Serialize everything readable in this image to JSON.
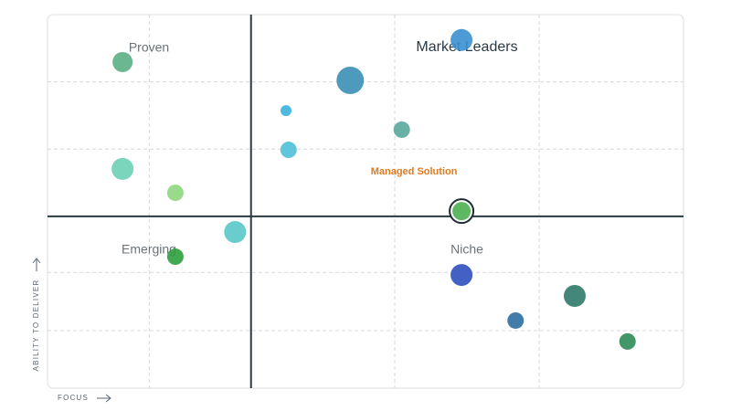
{
  "chart_data": {
    "type": "scatter",
    "quadrant_labels": [
      "Proven",
      "Market Leaders",
      "Emerging",
      "Niche"
    ],
    "annotation": "Managed Solution",
    "xlabel": "FOCUS",
    "ylabel": "ABILITY TO DELIVER",
    "xlim": [
      0,
      100
    ],
    "ylim": [
      0,
      100
    ],
    "xticks": [
      16,
      54.6,
      77.3
    ],
    "yticks": [
      15.4,
      31,
      64,
      82
    ],
    "x_divider": 32,
    "y_divider": 46,
    "grid": true,
    "highlight": 8,
    "series": [
      {
        "x": [
          11.8,
          47.6,
          65.1,
          37.5,
          55.7,
          37.9,
          11.8,
          20.1,
          65.1,
          29.5,
          20.1,
          65.1,
          82.9,
          73.6,
          91.2
        ],
        "y": [
          87.3,
          82.4,
          93.2,
          74.3,
          69.2,
          63.8,
          58.7,
          52.3,
          47.4,
          41.8,
          35.2,
          30.3,
          24.7,
          18.1,
          12.5
        ],
        "sizes": [
          11,
          15,
          12,
          6,
          9,
          9,
          12,
          9,
          10,
          12,
          9,
          12,
          12,
          9,
          9
        ],
        "colors": [
          "#5aaf85",
          "#3a8fb5",
          "#3b8fd0",
          "#3bb3e0",
          "#58a89a",
          "#4fc0d8",
          "#6dcfb5",
          "#8fd67e",
          "#4caf50",
          "#5ac8c8",
          "#2e9e3e",
          "#2f4fbf",
          "#2f7a6a",
          "#2f6e9e",
          "#2e8b57"
        ]
      }
    ]
  }
}
